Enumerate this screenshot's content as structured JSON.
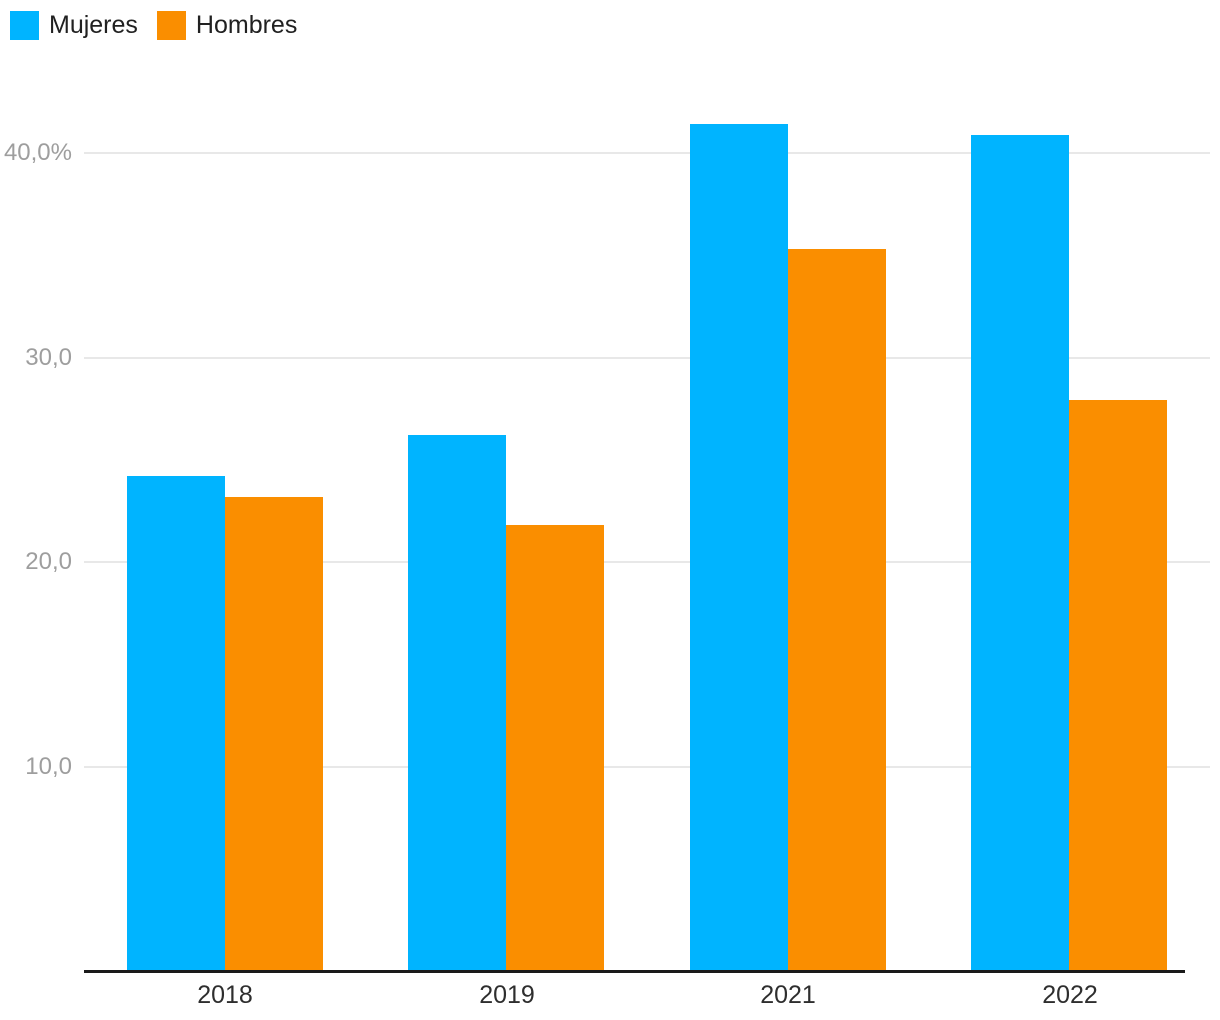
{
  "chart_data": {
    "type": "bar",
    "title": "",
    "categories": [
      "2018",
      "2019",
      "2021",
      "2022"
    ],
    "series": [
      {
        "name": "Mujeres",
        "color": "#00B4FF",
        "values": [
          24.2,
          26.2,
          41.4,
          40.9
        ]
      },
      {
        "name": "Hombres",
        "color": "#FA8E00",
        "values": [
          23.2,
          21.8,
          35.3,
          27.9
        ]
      }
    ],
    "yticks": [
      {
        "value": 40,
        "label": "40,0%"
      },
      {
        "value": 30,
        "label": "30,0"
      },
      {
        "value": 20,
        "label": "20,0"
      },
      {
        "value": 10,
        "label": "10,0"
      }
    ],
    "ylim": [
      0,
      47.5
    ],
    "unit": "%",
    "grid": "horizontal",
    "legend_position": "top-left",
    "colors": {
      "grid": "#E8E8E8",
      "axis": "#1A1A1A",
      "ytick_label": "#9E9E9E",
      "xtick_label": "#2E2E2E",
      "legend_label": "#212121",
      "background": "#FFFFFF"
    }
  }
}
